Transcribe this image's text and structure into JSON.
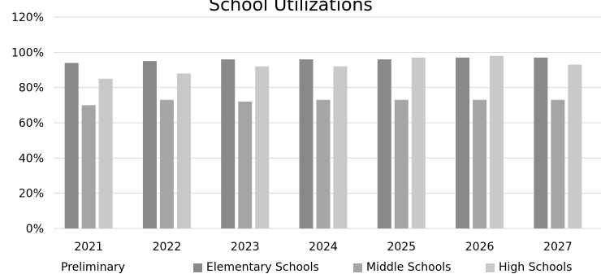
{
  "chart_data": {
    "type": "bar",
    "title": "School Utilizations",
    "xlabel": "",
    "ylabel": "",
    "ylim": [
      0,
      120
    ],
    "ytick_step": 20,
    "ytick_format": "percent",
    "grid": true,
    "legend_position": "bottom",
    "categories": [
      "2021",
      "2022",
      "2023",
      "2024",
      "2025",
      "2026",
      "2027"
    ],
    "series": [
      {
        "name": "Elementary Schools",
        "color": "#898989",
        "values": [
          94,
          95,
          96,
          96,
          96,
          97,
          97
        ]
      },
      {
        "name": "Middle Schools",
        "color": "#a5a5a5",
        "values": [
          70,
          73,
          72,
          73,
          73,
          73,
          73
        ]
      },
      {
        "name": "High Schools",
        "color": "#c9c9c9",
        "values": [
          85,
          88,
          92,
          92,
          97,
          98,
          93
        ]
      }
    ],
    "footnote": "Preliminary"
  },
  "colors": {
    "grid": "#d9d9d9",
    "axis": "#d9d9d9",
    "text": "#000000"
  }
}
